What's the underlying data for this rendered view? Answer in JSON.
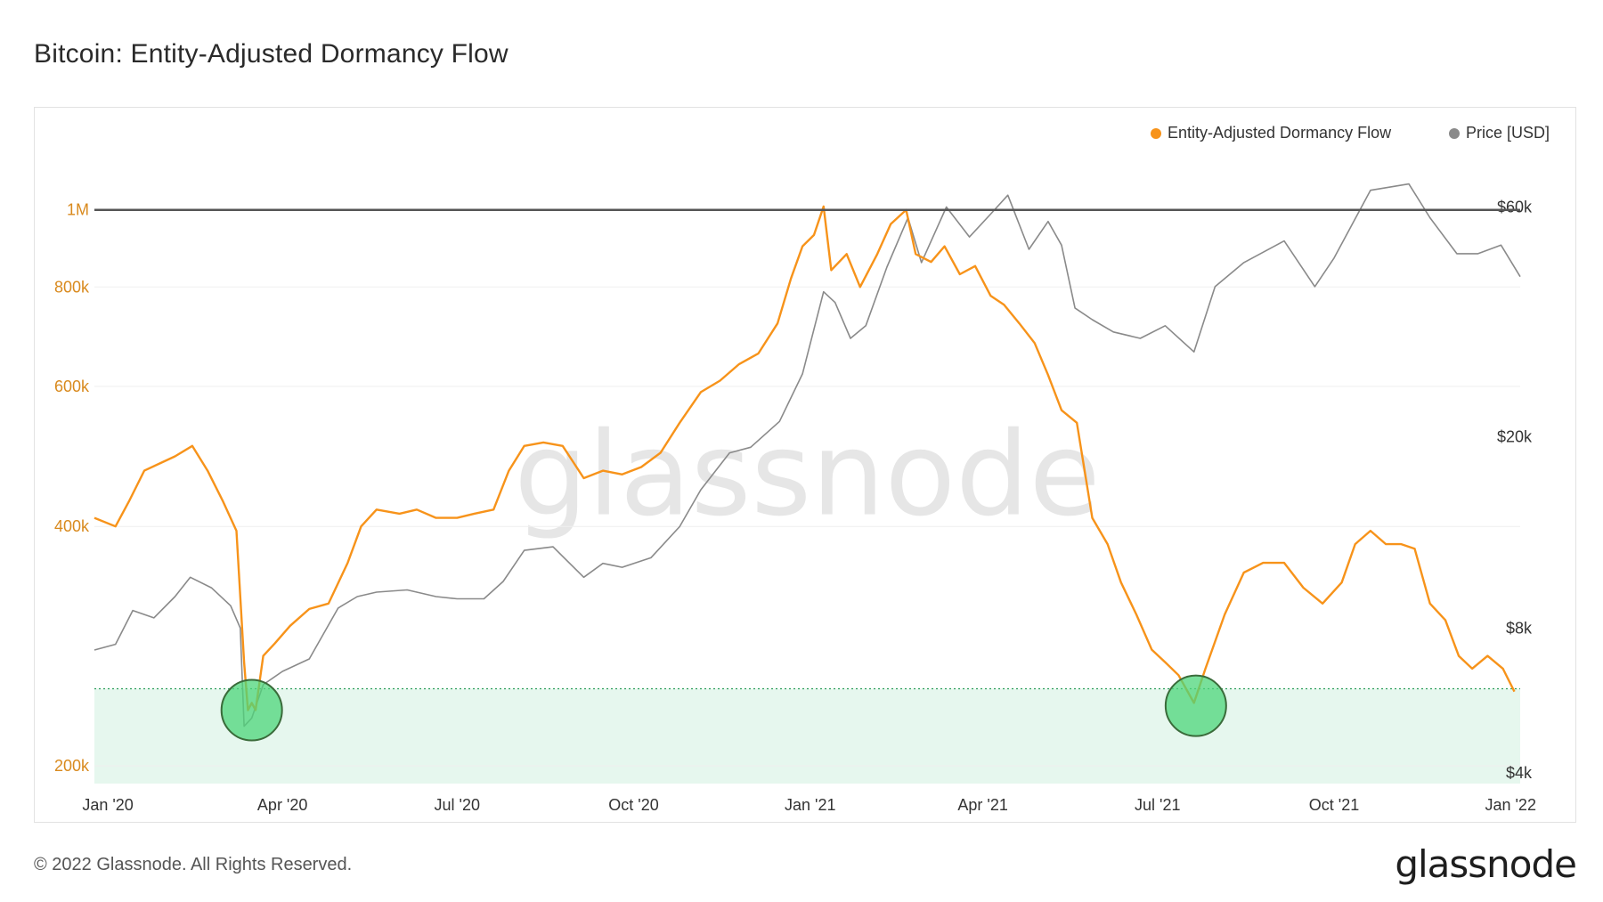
{
  "header": {
    "title": "Bitcoin: Entity-Adjusted Dormancy Flow"
  },
  "footer": {
    "copyright": "© 2022 Glassnode. All Rights Reserved.",
    "logo": "glassnode"
  },
  "watermark": "glassnode",
  "colors": {
    "flow": "#f7931a",
    "price": "#8a8a8a",
    "threshold": "#555555",
    "zone_fill": "#e6f7ee",
    "zone_line": "#2e9e5b",
    "marker": "#4cd679",
    "flow_in_zone": "#7ecb5a"
  },
  "chart_data": {
    "type": "line",
    "legend": {
      "placement": "top-right",
      "entries": [
        "Entity-Adjusted Dormancy Flow",
        "Price [USD]"
      ]
    },
    "x_ticks": [
      {
        "label": "Jan '20",
        "date": "2020-01-01"
      },
      {
        "label": "Apr '20",
        "date": "2020-04-01"
      },
      {
        "label": "Jul '20",
        "date": "2020-07-01"
      },
      {
        "label": "Oct '20",
        "date": "2020-10-01"
      },
      {
        "label": "Jan '21",
        "date": "2021-01-01"
      },
      {
        "label": "Apr '21",
        "date": "2021-04-01"
      },
      {
        "label": "Jul '21",
        "date": "2021-07-01"
      },
      {
        "label": "Oct '21",
        "date": "2021-10-01"
      },
      {
        "label": "Jan '22",
        "date": "2022-01-01"
      }
    ],
    "x_range": [
      "2019-12-25",
      "2022-01-06"
    ],
    "left_axis": {
      "scale": "log",
      "range": [
        190000,
        1200000
      ],
      "ticks": [
        {
          "label": "200k",
          "value": 200000
        },
        {
          "label": "400k",
          "value": 400000
        },
        {
          "label": "600k",
          "value": 600000
        },
        {
          "label": "800k",
          "value": 800000
        },
        {
          "label": "1M",
          "value": 1000000
        }
      ]
    },
    "right_axis": {
      "scale": "log",
      "range": [
        3800,
        80000
      ],
      "ticks": [
        {
          "label": "$4k",
          "value": 4000
        },
        {
          "label": "$8k",
          "value": 8000
        },
        {
          "label": "$20k",
          "value": 20000
        },
        {
          "label": "$60k",
          "value": 60000
        }
      ]
    },
    "threshold": {
      "value": 1000000
    },
    "buy_zone": {
      "upper": 250000
    },
    "markers": [
      {
        "date": "2020-03-16",
        "value": 235000
      },
      {
        "date": "2021-07-21",
        "value": 238000
      }
    ],
    "series": [
      {
        "name": "Entity-Adjusted Dormancy Flow",
        "axis": "left",
        "points": [
          [
            "2019-12-25",
            410000
          ],
          [
            "2020-01-05",
            400000
          ],
          [
            "2020-01-12",
            430000
          ],
          [
            "2020-01-20",
            470000
          ],
          [
            "2020-01-28",
            480000
          ],
          [
            "2020-02-05",
            490000
          ],
          [
            "2020-02-14",
            505000
          ],
          [
            "2020-02-22",
            470000
          ],
          [
            "2020-03-01",
            430000
          ],
          [
            "2020-03-08",
            395000
          ],
          [
            "2020-03-12",
            270000
          ],
          [
            "2020-03-14",
            235000
          ],
          [
            "2020-03-16",
            240000
          ],
          [
            "2020-03-18",
            235000
          ],
          [
            "2020-03-22",
            275000
          ],
          [
            "2020-03-28",
            285000
          ],
          [
            "2020-04-05",
            300000
          ],
          [
            "2020-04-15",
            315000
          ],
          [
            "2020-04-25",
            320000
          ],
          [
            "2020-05-05",
            360000
          ],
          [
            "2020-05-12",
            400000
          ],
          [
            "2020-05-20",
            420000
          ],
          [
            "2020-06-01",
            415000
          ],
          [
            "2020-06-10",
            420000
          ],
          [
            "2020-06-20",
            410000
          ],
          [
            "2020-07-01",
            410000
          ],
          [
            "2020-07-10",
            415000
          ],
          [
            "2020-07-20",
            420000
          ],
          [
            "2020-07-28",
            470000
          ],
          [
            "2020-08-05",
            505000
          ],
          [
            "2020-08-15",
            510000
          ],
          [
            "2020-08-25",
            505000
          ],
          [
            "2020-09-05",
            460000
          ],
          [
            "2020-09-15",
            470000
          ],
          [
            "2020-09-25",
            465000
          ],
          [
            "2020-10-05",
            475000
          ],
          [
            "2020-10-15",
            495000
          ],
          [
            "2020-10-25",
            540000
          ],
          [
            "2020-11-05",
            590000
          ],
          [
            "2020-11-15",
            610000
          ],
          [
            "2020-11-25",
            640000
          ],
          [
            "2020-12-05",
            660000
          ],
          [
            "2020-12-15",
            720000
          ],
          [
            "2020-12-22",
            820000
          ],
          [
            "2020-12-28",
            900000
          ],
          [
            "2021-01-03",
            930000
          ],
          [
            "2021-01-08",
            1010000
          ],
          [
            "2021-01-12",
            840000
          ],
          [
            "2021-01-20",
            880000
          ],
          [
            "2021-01-27",
            800000
          ],
          [
            "2021-02-05",
            880000
          ],
          [
            "2021-02-12",
            960000
          ],
          [
            "2021-02-20",
            1000000
          ],
          [
            "2021-02-25",
            880000
          ],
          [
            "2021-03-05",
            860000
          ],
          [
            "2021-03-12",
            900000
          ],
          [
            "2021-03-20",
            830000
          ],
          [
            "2021-03-28",
            850000
          ],
          [
            "2021-04-05",
            780000
          ],
          [
            "2021-04-12",
            760000
          ],
          [
            "2021-04-20",
            720000
          ],
          [
            "2021-04-28",
            680000
          ],
          [
            "2021-05-05",
            620000
          ],
          [
            "2021-05-12",
            560000
          ],
          [
            "2021-05-20",
            540000
          ],
          [
            "2021-05-28",
            410000
          ],
          [
            "2021-06-05",
            380000
          ],
          [
            "2021-06-12",
            340000
          ],
          [
            "2021-06-20",
            310000
          ],
          [
            "2021-06-28",
            280000
          ],
          [
            "2021-07-05",
            270000
          ],
          [
            "2021-07-12",
            260000
          ],
          [
            "2021-07-20",
            240000
          ],
          [
            "2021-07-26",
            265000
          ],
          [
            "2021-08-05",
            310000
          ],
          [
            "2021-08-15",
            350000
          ],
          [
            "2021-08-25",
            360000
          ],
          [
            "2021-09-05",
            360000
          ],
          [
            "2021-09-15",
            335000
          ],
          [
            "2021-09-25",
            320000
          ],
          [
            "2021-10-05",
            340000
          ],
          [
            "2021-10-12",
            380000
          ],
          [
            "2021-10-20",
            395000
          ],
          [
            "2021-10-28",
            380000
          ],
          [
            "2021-11-05",
            380000
          ],
          [
            "2021-11-12",
            375000
          ],
          [
            "2021-11-20",
            320000
          ],
          [
            "2021-11-28",
            305000
          ],
          [
            "2021-12-05",
            275000
          ],
          [
            "2021-12-12",
            265000
          ],
          [
            "2021-12-20",
            275000
          ],
          [
            "2021-12-28",
            265000
          ],
          [
            "2022-01-03",
            248000
          ]
        ]
      },
      {
        "name": "Price [USD]",
        "axis": "right",
        "points": [
          [
            "2019-12-25",
            7200
          ],
          [
            "2020-01-05",
            7400
          ],
          [
            "2020-01-14",
            8700
          ],
          [
            "2020-01-25",
            8400
          ],
          [
            "2020-02-05",
            9300
          ],
          [
            "2020-02-13",
            10200
          ],
          [
            "2020-02-24",
            9700
          ],
          [
            "2020-03-05",
            8900
          ],
          [
            "2020-03-10",
            8000
          ],
          [
            "2020-03-12",
            5000
          ],
          [
            "2020-03-16",
            5200
          ],
          [
            "2020-03-22",
            6100
          ],
          [
            "2020-04-01",
            6500
          ],
          [
            "2020-04-15",
            6900
          ],
          [
            "2020-04-30",
            8800
          ],
          [
            "2020-05-10",
            9300
          ],
          [
            "2020-05-20",
            9500
          ],
          [
            "2020-06-05",
            9600
          ],
          [
            "2020-06-20",
            9300
          ],
          [
            "2020-07-01",
            9200
          ],
          [
            "2020-07-15",
            9200
          ],
          [
            "2020-07-25",
            10000
          ],
          [
            "2020-08-05",
            11600
          ],
          [
            "2020-08-20",
            11800
          ],
          [
            "2020-09-05",
            10200
          ],
          [
            "2020-09-15",
            10900
          ],
          [
            "2020-09-25",
            10700
          ],
          [
            "2020-10-10",
            11200
          ],
          [
            "2020-10-25",
            13000
          ],
          [
            "2020-11-05",
            15500
          ],
          [
            "2020-11-20",
            18500
          ],
          [
            "2020-12-01",
            19000
          ],
          [
            "2020-12-16",
            21500
          ],
          [
            "2020-12-28",
            27000
          ],
          [
            "2021-01-08",
            40000
          ],
          [
            "2021-01-14",
            38000
          ],
          [
            "2021-01-22",
            32000
          ],
          [
            "2021-01-30",
            34000
          ],
          [
            "2021-02-10",
            45000
          ],
          [
            "2021-02-21",
            57000
          ],
          [
            "2021-02-28",
            46000
          ],
          [
            "2021-03-13",
            60000
          ],
          [
            "2021-03-25",
            52000
          ],
          [
            "2021-04-05",
            58000
          ],
          [
            "2021-04-14",
            63500
          ],
          [
            "2021-04-25",
            49000
          ],
          [
            "2021-05-05",
            56000
          ],
          [
            "2021-05-12",
            50000
          ],
          [
            "2021-05-19",
            37000
          ],
          [
            "2021-05-28",
            35000
          ],
          [
            "2021-06-08",
            33000
          ],
          [
            "2021-06-22",
            32000
          ],
          [
            "2021-07-05",
            34000
          ],
          [
            "2021-07-20",
            30000
          ],
          [
            "2021-07-31",
            41000
          ],
          [
            "2021-08-15",
            46000
          ],
          [
            "2021-09-05",
            51000
          ],
          [
            "2021-09-21",
            41000
          ],
          [
            "2021-10-01",
            47000
          ],
          [
            "2021-10-20",
            65000
          ],
          [
            "2021-11-09",
            67000
          ],
          [
            "2021-11-20",
            57000
          ],
          [
            "2021-12-04",
            48000
          ],
          [
            "2021-12-15",
            48000
          ],
          [
            "2021-12-27",
            50000
          ],
          [
            "2022-01-06",
            43000
          ]
        ]
      }
    ]
  }
}
